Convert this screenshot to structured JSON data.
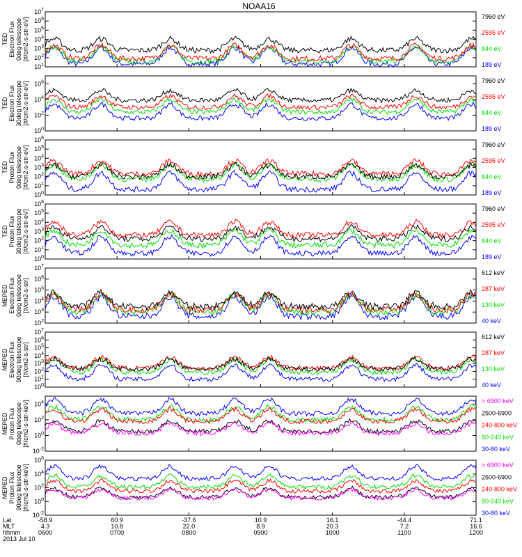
{
  "title": "NOAA16",
  "colors": {
    "blue": "#0000ff",
    "red": "#ff0000",
    "green": "#00e000",
    "black": "#000000",
    "magenta": "#ff00ff"
  },
  "xaxis": {
    "row_labels": [
      "Lat",
      "MLT",
      "hhmm",
      "2013 Jul 10"
    ],
    "ticks": [
      {
        "lat": "-58.9",
        "mlt": "4.3",
        "hhmm": "0600"
      },
      {
        "lat": "60.9",
        "mlt": "10.8",
        "hhmm": "0700"
      },
      {
        "lat": "-37.6",
        "mlt": "22.0",
        "hhmm": "0800"
      },
      {
        "lat": "10.9",
        "mlt": "8.9",
        "hhmm": "0900"
      },
      {
        "lat": "16.1",
        "mlt": "20.3",
        "hhmm": "1000"
      },
      {
        "lat": "-44.4",
        "mlt": "7.2",
        "hhmm": "1100"
      },
      {
        "lat": "71.1",
        "mlt": "16.6",
        "hhmm": "1200"
      }
    ]
  },
  "chart_data": [
    {
      "type": "line",
      "ylabel": [
        "TED",
        "Electron Flux",
        "0deg telescope",
        "[#/cm2-s-str-eV]"
      ],
      "yticks": [
        "10^1",
        "10^2",
        "10^3",
        "10^4",
        "10^5",
        "10^6",
        "10^7"
      ],
      "ylim_exp": [
        1,
        7
      ],
      "legend": [
        {
          "text": "7960 eV",
          "color": "black"
        },
        {
          "text": "2595 eV",
          "color": "red"
        },
        {
          "text": "844 eV",
          "color": "green"
        },
        {
          "text": "189 eV",
          "color": "blue"
        }
      ],
      "series_levels": [
        2.8,
        1.9,
        1.6,
        1.3
      ]
    },
    {
      "type": "line",
      "ylabel": [
        "TED",
        "Electron Flux",
        "30deg telescope",
        "[#/cm2-s-str-eV]"
      ],
      "yticks": [
        "10^0",
        "10^2",
        "10^4",
        "10^6"
      ],
      "ylim_exp": [
        0,
        7
      ],
      "legend": [
        {
          "text": "7960 eV",
          "color": "black"
        },
        {
          "text": "2595 eV",
          "color": "red"
        },
        {
          "text": "844 eV",
          "color": "green"
        },
        {
          "text": "189 eV",
          "color": "blue"
        }
      ],
      "series_levels": [
        3.9,
        3.0,
        2.4,
        1.6
      ]
    },
    {
      "type": "line",
      "ylabel": [
        "TED",
        "Proton Flux",
        "0deg telescope",
        "[#/cm2-s-str-eV]"
      ],
      "yticks": [
        "10^0",
        "10^1",
        "10^2",
        "10^3",
        "10^4",
        "10^5",
        "10^6"
      ],
      "ylim_exp": [
        0,
        6
      ],
      "legend": [
        {
          "text": "7960 eV",
          "color": "black"
        },
        {
          "text": "2595 eV",
          "color": "red"
        },
        {
          "text": "844 eV",
          "color": "green"
        },
        {
          "text": "189 eV",
          "color": "blue"
        }
      ],
      "series_levels": [
        2.0,
        2.3,
        1.7,
        0.6
      ]
    },
    {
      "type": "line",
      "ylabel": [
        "TED",
        "Proton Flux",
        "30deg telescope",
        "[#/cm2-s-str-eV]"
      ],
      "yticks": [
        "10^0",
        "10^1",
        "10^2",
        "10^3",
        "10^4",
        "10^5",
        "10^6"
      ],
      "ylim_exp": [
        0,
        6
      ],
      "legend": [
        {
          "text": "7960 eV",
          "color": "black"
        },
        {
          "text": "2595 eV",
          "color": "red"
        },
        {
          "text": "844 eV",
          "color": "green"
        },
        {
          "text": "189 eV",
          "color": "blue"
        }
      ],
      "series_levels": [
        2.2,
        2.6,
        1.5,
        0.6
      ]
    },
    {
      "type": "line",
      "ylabel": [
        "MEPED",
        "Electron Flux",
        "0deg telescope",
        "[#/cm2-s-str]"
      ],
      "yticks": [
        "10^2",
        "10^3",
        "10^4",
        "10^5",
        "10^6",
        "10^7"
      ],
      "ylim_exp": [
        2,
        7
      ],
      "legend": [
        {
          "text": "612 keV",
          "color": "black"
        },
        {
          "text": "287 keV",
          "color": "red"
        },
        {
          "text": "130 keV",
          "color": "green"
        },
        {
          "text": "40 keV",
          "color": "blue"
        }
      ],
      "series_levels": [
        3.5,
        3.2,
        3.0,
        2.6
      ]
    },
    {
      "type": "line",
      "ylabel": [
        "MEPED",
        "Electron Flux",
        "90deg telescope",
        "[#/cm2-s-str]"
      ],
      "yticks": [
        "10^0",
        "10^1",
        "10^2",
        "10^3",
        "10^4",
        "10^5",
        "10^6",
        "10^7"
      ],
      "ylim_exp": [
        0,
        7
      ],
      "legend": [
        {
          "text": "612 keV",
          "color": "black"
        },
        {
          "text": "287 keV",
          "color": "red"
        },
        {
          "text": "130 keV",
          "color": "green"
        },
        {
          "text": "40 keV",
          "color": "blue"
        }
      ],
      "series_levels": [
        2.3,
        2.4,
        1.9,
        1.0
      ]
    },
    {
      "type": "line",
      "ylabel": [
        "MEPED",
        "Proton Flux",
        "0deg telescope",
        "[#/cm2-s-str-keV]"
      ],
      "yticks": [
        "10^-2",
        "10^0",
        "10^2",
        "10^4"
      ],
      "ylim_exp": [
        -2,
        5
      ],
      "legend": [
        {
          "text": "> 6900 keV",
          "color": "magenta"
        },
        {
          "text": "2500-6900",
          "color": "black"
        },
        {
          "text": "240-800 keV",
          "color": "red"
        },
        {
          "text": "80-240 keV",
          "color": "green"
        },
        {
          "text": "30-80 keV",
          "color": "blue"
        }
      ],
      "series_levels": [
        0.3,
        0.5,
        1.8,
        2.0,
        2.8
      ]
    },
    {
      "type": "line",
      "ylabel": [
        "MEPED",
        "Proton Flux",
        "90deg telescope",
        "[#/cm2-s-str-keV]"
      ],
      "yticks": [
        "10^-2",
        "10^0",
        "10^2",
        "10^4",
        "10^6"
      ],
      "ylim_exp": [
        -2,
        6
      ],
      "legend": [
        {
          "text": "> 6900 keV",
          "color": "magenta"
        },
        {
          "text": "2500-6900",
          "color": "black"
        },
        {
          "text": "240-800 keV",
          "color": "red"
        },
        {
          "text": "80-240 keV",
          "color": "green"
        },
        {
          "text": "30-80 keV",
          "color": "blue"
        }
      ],
      "series_levels": [
        0.5,
        0.6,
        1.5,
        2.1,
        3.3
      ]
    }
  ]
}
